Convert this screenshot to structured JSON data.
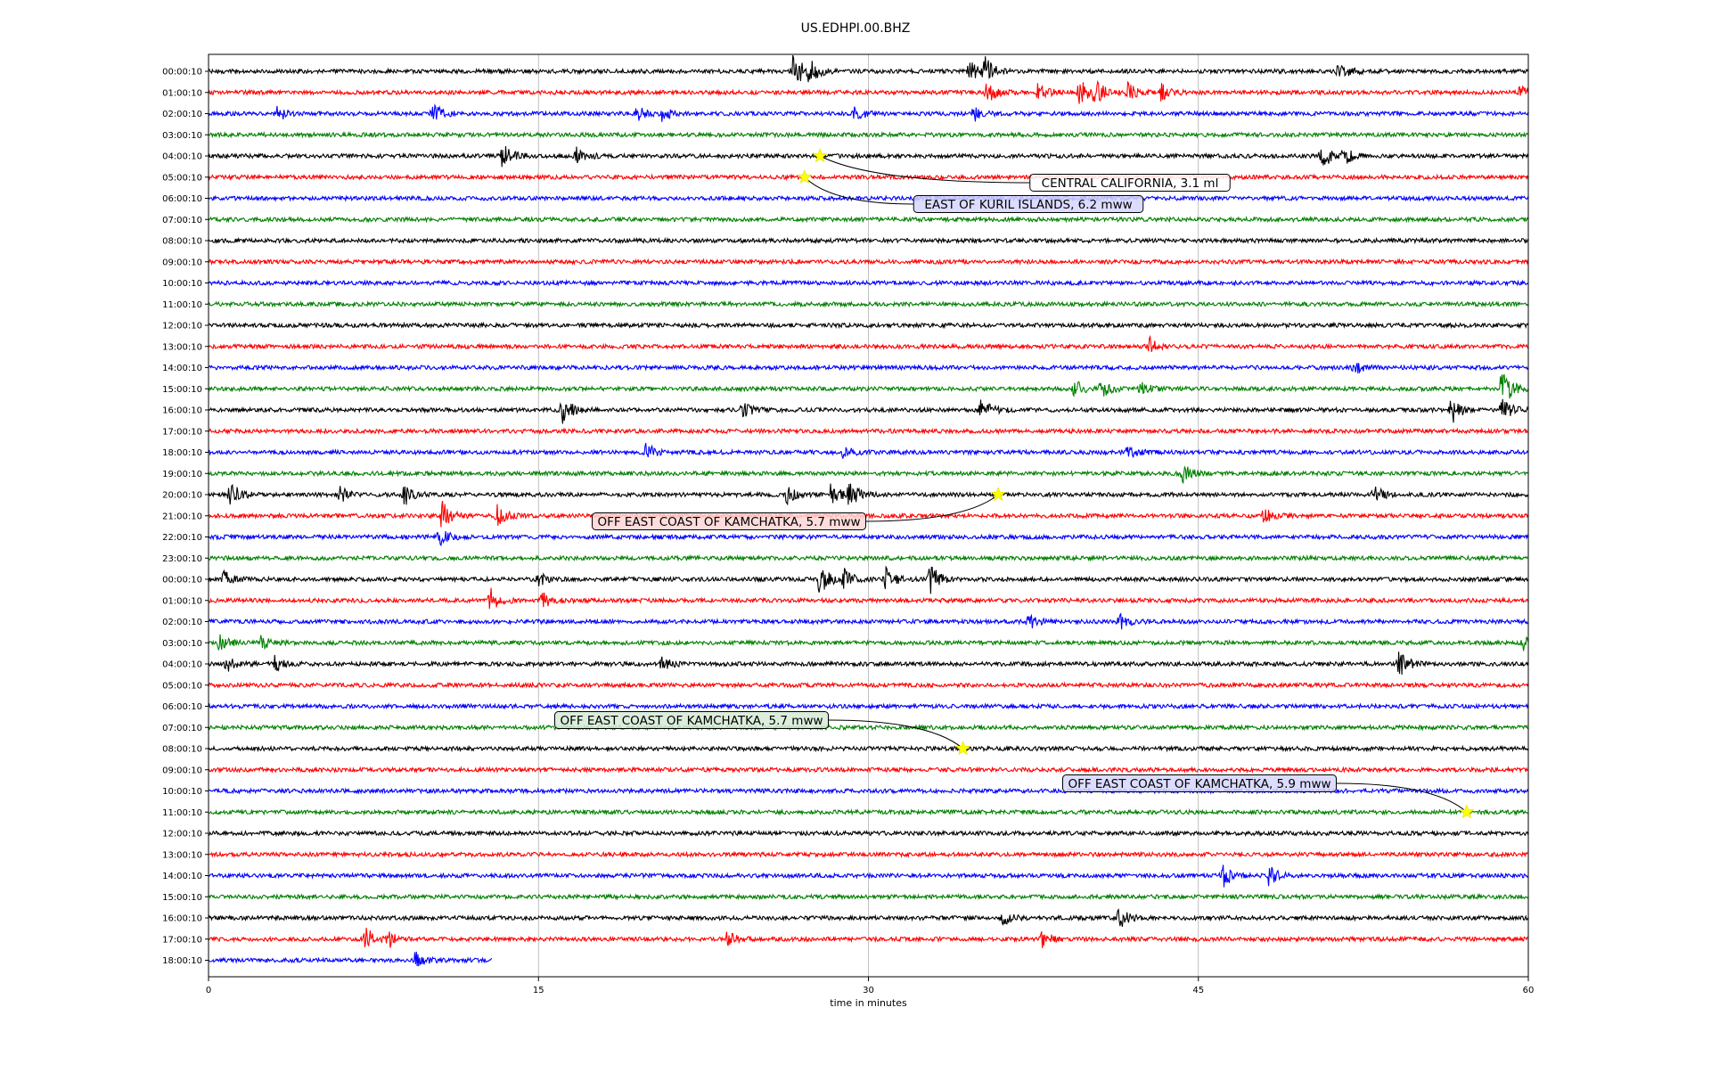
{
  "chart_data": {
    "type": "line",
    "title": "US.EDHPI.00.BHZ",
    "xlabel": "time in minutes",
    "ylabel": "",
    "xlim": [
      0,
      60
    ],
    "x_ticks": [
      0,
      15,
      30,
      45,
      60
    ],
    "grid": "vertical at x ticks",
    "trace_color_cycle": [
      "#000000",
      "#ff0000",
      "#0000ff",
      "#008000"
    ],
    "row_labels": [
      "00:00:10",
      "01:00:10",
      "02:00:10",
      "03:00:10",
      "04:00:10",
      "05:00:10",
      "06:00:10",
      "07:00:10",
      "08:00:10",
      "09:00:10",
      "10:00:10",
      "11:00:10",
      "12:00:10",
      "13:00:10",
      "14:00:10",
      "15:00:10",
      "16:00:10",
      "17:00:10",
      "18:00:10",
      "19:00:10",
      "20:00:10",
      "21:00:10",
      "22:00:10",
      "23:00:10",
      "00:00:10",
      "01:00:10",
      "02:00:10",
      "03:00:10",
      "04:00:10",
      "05:00:10",
      "06:00:10",
      "07:00:10",
      "08:00:10",
      "09:00:10",
      "10:00:10",
      "11:00:10",
      "12:00:10",
      "13:00:10",
      "14:00:10",
      "15:00:10",
      "16:00:10",
      "17:00:10",
      "18:00:10"
    ],
    "last_row_end_minute": 12.9,
    "events": [
      {
        "label": "CENTRAL CALIFORNIA, 3.1 ml",
        "row": 4,
        "minute": 27.8,
        "box_color": "#ffffff"
      },
      {
        "label": "EAST OF KURIL ISLANDS, 6.2 mww",
        "row": 5,
        "minute": 27.1,
        "box_color": "#d6d6ff"
      },
      {
        "label": "OFF EAST COAST OF KAMCHATKA, 5.7 mww",
        "row": 20,
        "minute": 35.9,
        "box_color": "#ffd6d6"
      },
      {
        "label": "OFF EAST COAST OF KAMCHATKA, 5.7 mww",
        "row": 32,
        "minute": 34.3,
        "box_color": "#d6ead6"
      },
      {
        "label": "OFF EAST COAST OF KAMCHATKA, 5.9 mww",
        "row": 35,
        "minute": 57.2,
        "box_color": "#d6d6ff"
      }
    ],
    "bursts": [
      {
        "row": 0,
        "minute": 26.6,
        "amp": 2.4
      },
      {
        "row": 0,
        "minute": 27.3,
        "amp": 1.5
      },
      {
        "row": 0,
        "minute": 34.6,
        "amp": 1.4
      },
      {
        "row": 0,
        "minute": 35.3,
        "amp": 1.6
      },
      {
        "row": 0,
        "minute": 51.4,
        "amp": 1.2
      },
      {
        "row": 1,
        "minute": 35.4,
        "amp": 1.3
      },
      {
        "row": 1,
        "minute": 37.7,
        "amp": 1.5
      },
      {
        "row": 1,
        "minute": 39.6,
        "amp": 1.8
      },
      {
        "row": 1,
        "minute": 40.3,
        "amp": 1.6
      },
      {
        "row": 1,
        "minute": 41.8,
        "amp": 1.3
      },
      {
        "row": 1,
        "minute": 43.3,
        "amp": 1.2
      },
      {
        "row": 1,
        "minute": 59.6,
        "amp": 1.0
      },
      {
        "row": 2,
        "minute": 3.1,
        "amp": 1.1
      },
      {
        "row": 2,
        "minute": 10.2,
        "amp": 1.3
      },
      {
        "row": 2,
        "minute": 19.5,
        "amp": 0.9
      },
      {
        "row": 2,
        "minute": 20.6,
        "amp": 0.9
      },
      {
        "row": 2,
        "minute": 29.4,
        "amp": 1.0
      },
      {
        "row": 2,
        "minute": 34.8,
        "amp": 0.9
      },
      {
        "row": 4,
        "minute": 13.4,
        "amp": 2.0
      },
      {
        "row": 4,
        "minute": 16.7,
        "amp": 1.2
      },
      {
        "row": 4,
        "minute": 50.6,
        "amp": 1.8
      },
      {
        "row": 4,
        "minute": 51.6,
        "amp": 1.1
      },
      {
        "row": 13,
        "minute": 42.8,
        "amp": 1.0
      },
      {
        "row": 14,
        "minute": 52.1,
        "amp": 0.8
      },
      {
        "row": 15,
        "minute": 39.4,
        "amp": 1.3
      },
      {
        "row": 15,
        "minute": 40.6,
        "amp": 1.1
      },
      {
        "row": 15,
        "minute": 42.3,
        "amp": 1.0
      },
      {
        "row": 15,
        "minute": 58.8,
        "amp": 2.6
      },
      {
        "row": 16,
        "minute": 16.1,
        "amp": 1.9
      },
      {
        "row": 16,
        "minute": 24.3,
        "amp": 1.2
      },
      {
        "row": 16,
        "minute": 35.1,
        "amp": 1.8
      },
      {
        "row": 16,
        "minute": 56.5,
        "amp": 1.8
      },
      {
        "row": 16,
        "minute": 58.8,
        "amp": 1.6
      },
      {
        "row": 18,
        "minute": 19.9,
        "amp": 1.1
      },
      {
        "row": 18,
        "minute": 28.9,
        "amp": 0.9
      },
      {
        "row": 18,
        "minute": 41.8,
        "amp": 0.9
      },
      {
        "row": 19,
        "minute": 44.3,
        "amp": 1.1
      },
      {
        "row": 20,
        "minute": 1.0,
        "amp": 1.6
      },
      {
        "row": 20,
        "minute": 6.0,
        "amp": 1.0
      },
      {
        "row": 20,
        "minute": 8.9,
        "amp": 1.5
      },
      {
        "row": 20,
        "minute": 26.3,
        "amp": 1.2
      },
      {
        "row": 20,
        "minute": 28.3,
        "amp": 1.4
      },
      {
        "row": 20,
        "minute": 29.1,
        "amp": 1.8
      },
      {
        "row": 20,
        "minute": 53.0,
        "amp": 1.2
      },
      {
        "row": 21,
        "minute": 10.6,
        "amp": 2.0
      },
      {
        "row": 21,
        "minute": 13.1,
        "amp": 1.4
      },
      {
        "row": 21,
        "minute": 48.0,
        "amp": 1.0
      },
      {
        "row": 22,
        "minute": 10.5,
        "amp": 1.2
      },
      {
        "row": 24,
        "minute": 0.7,
        "amp": 1.0
      },
      {
        "row": 24,
        "minute": 15.0,
        "amp": 1.0
      },
      {
        "row": 24,
        "minute": 27.8,
        "amp": 2.2
      },
      {
        "row": 24,
        "minute": 28.9,
        "amp": 1.4
      },
      {
        "row": 24,
        "minute": 30.8,
        "amp": 1.6
      },
      {
        "row": 24,
        "minute": 32.8,
        "amp": 2.0
      },
      {
        "row": 25,
        "minute": 12.8,
        "amp": 1.5
      },
      {
        "row": 25,
        "minute": 15.2,
        "amp": 1.0
      },
      {
        "row": 26,
        "minute": 37.3,
        "amp": 1.0
      },
      {
        "row": 26,
        "minute": 41.4,
        "amp": 1.0
      },
      {
        "row": 27,
        "minute": 0.5,
        "amp": 1.0
      },
      {
        "row": 27,
        "minute": 2.4,
        "amp": 0.9
      },
      {
        "row": 27,
        "minute": 59.8,
        "amp": 1.0
      },
      {
        "row": 28,
        "minute": 0.8,
        "amp": 1.0
      },
      {
        "row": 28,
        "minute": 3.0,
        "amp": 1.1
      },
      {
        "row": 28,
        "minute": 20.6,
        "amp": 0.8
      },
      {
        "row": 28,
        "minute": 54.1,
        "amp": 2.0
      },
      {
        "row": 38,
        "minute": 46.1,
        "amp": 1.5
      },
      {
        "row": 38,
        "minute": 48.2,
        "amp": 1.2
      },
      {
        "row": 40,
        "minute": 36.1,
        "amp": 0.9
      },
      {
        "row": 40,
        "minute": 41.4,
        "amp": 1.4
      },
      {
        "row": 41,
        "minute": 7.1,
        "amp": 1.7
      },
      {
        "row": 41,
        "minute": 8.2,
        "amp": 1.0
      },
      {
        "row": 41,
        "minute": 23.6,
        "amp": 1.0
      },
      {
        "row": 41,
        "minute": 37.9,
        "amp": 1.0
      },
      {
        "row": 42,
        "minute": 9.4,
        "amp": 1.0
      }
    ]
  }
}
